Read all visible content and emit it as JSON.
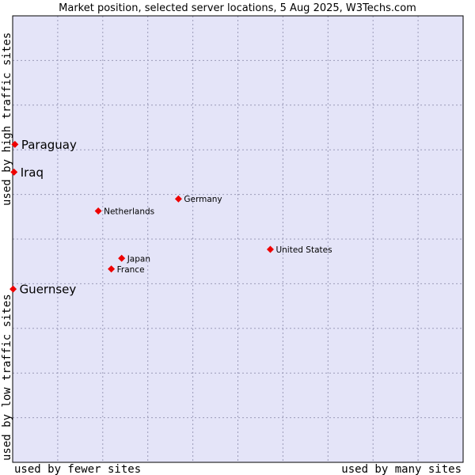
{
  "chart_data": {
    "type": "scatter",
    "title": "Market position, selected server locations, 5 Aug 2025, W3Techs.com",
    "x_axis": {
      "low_label": "used by fewer sites",
      "high_label": "used by many sites",
      "range": [
        0,
        100
      ]
    },
    "y_axis": {
      "low_label": "used by low traffic sites",
      "high_label": "used by high traffic sites",
      "range": [
        0,
        100
      ]
    },
    "grid": true,
    "colors": {
      "plot_bg": "#e4e4f8",
      "grid": "#9a9ab8",
      "point": "#ee0000"
    },
    "points": [
      {
        "name": "Paraguay",
        "x": 0.5,
        "y": 71.2,
        "emphasis": true
      },
      {
        "name": "Iraq",
        "x": 0.3,
        "y": 65.0,
        "emphasis": true
      },
      {
        "name": "Guernsey",
        "x": 0.1,
        "y": 38.8,
        "emphasis": true
      },
      {
        "name": "Germany",
        "x": 36.8,
        "y": 59.0,
        "emphasis": false
      },
      {
        "name": "Netherlands",
        "x": 19.0,
        "y": 56.3,
        "emphasis": false
      },
      {
        "name": "United States",
        "x": 57.2,
        "y": 47.7,
        "emphasis": false
      },
      {
        "name": "Japan",
        "x": 24.2,
        "y": 45.7,
        "emphasis": false
      },
      {
        "name": "France",
        "x": 21.9,
        "y": 43.3,
        "emphasis": false
      }
    ]
  }
}
